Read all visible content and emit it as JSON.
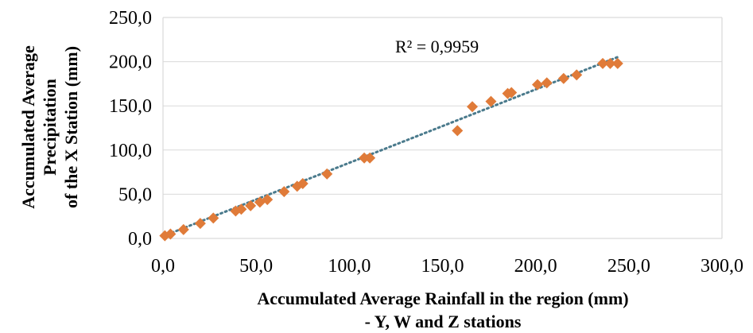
{
  "chart_data": {
    "type": "scatter",
    "title": "",
    "xlabel": [
      "Accumulated  Average Rainfall in the region (mm)",
      "- Y, W and Z stations"
    ],
    "ylabel": [
      "Accumulated Average",
      "Precipitation",
      "of the X Station (mm)"
    ],
    "xlim": [
      0,
      300
    ],
    "ylim": [
      0,
      250
    ],
    "x_ticks": [
      "0,0",
      "50,0",
      "100,0",
      "150,0",
      "200,0",
      "250,0",
      "300,0"
    ],
    "y_ticks": [
      "0,0",
      "50,0",
      "100,0",
      "150,0",
      "200,0",
      "250,0"
    ],
    "x_tick_values": [
      0,
      50,
      100,
      150,
      200,
      250,
      300
    ],
    "y_tick_values": [
      0,
      50,
      100,
      150,
      200,
      250
    ],
    "grid": "horizontal",
    "legend": "none",
    "marker_color": "#e07b39",
    "trendline_color": "#4a7a8c",
    "annotation": "R² = 0,9959",
    "series": [
      {
        "marker": "diamond",
        "x": [
          1,
          4,
          11,
          20,
          27,
          39,
          42,
          47,
          52,
          56,
          65,
          72,
          75,
          88,
          108,
          111,
          158,
          166,
          176,
          185,
          187,
          201,
          206,
          215,
          222,
          236,
          240,
          244
        ],
        "y": [
          3,
          5,
          10,
          17,
          23,
          31,
          33,
          37,
          41,
          44,
          53,
          59,
          62,
          73,
          91,
          91,
          122,
          149,
          155,
          164,
          165,
          174,
          176,
          181,
          185,
          198,
          198,
          198
        ]
      }
    ],
    "trendline": {
      "type": "linear",
      "x": [
        0,
        245
      ],
      "y": [
        2.5,
        206
      ]
    }
  }
}
